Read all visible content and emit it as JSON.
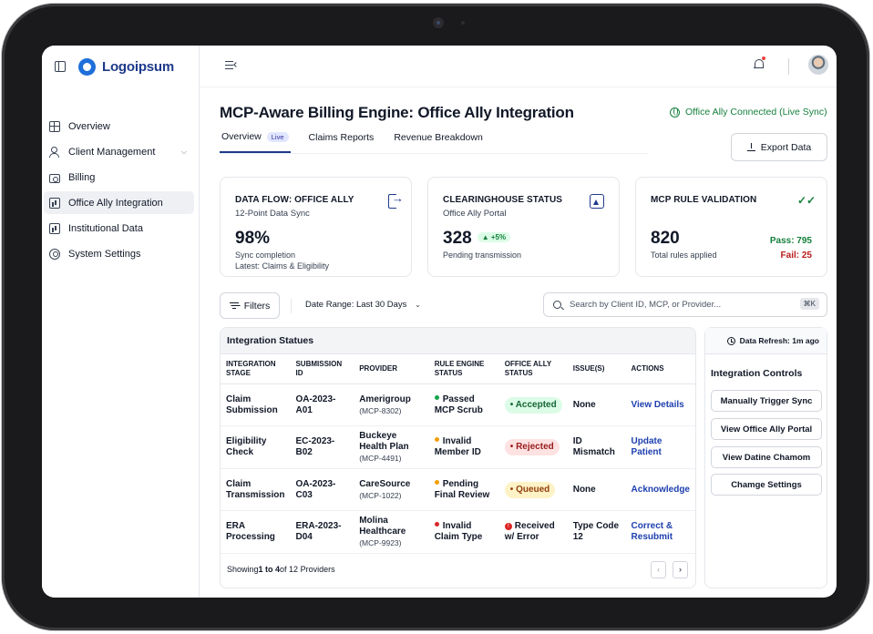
{
  "brand": {
    "name": "Logoipsum",
    "color": "#1e6fd9"
  },
  "sidebar": {
    "items": [
      {
        "label": "Overview",
        "icon": "grid-icon"
      },
      {
        "label": "Client Management",
        "icon": "users-icon",
        "expandable": true
      },
      {
        "label": "Billing",
        "icon": "credit-card-icon"
      },
      {
        "label": "Office Ally Integration",
        "icon": "bar-chart-icon",
        "active": true
      },
      {
        "label": "Institutional Data",
        "icon": "bar-chart-icon"
      },
      {
        "label": "System Settings",
        "icon": "gear-icon"
      }
    ]
  },
  "header": {
    "title": "MCP-Aware Billing Engine: Office Ally Integration",
    "connection_status": "Office Ally Connected (Live Sync)",
    "export_label": "Export Data"
  },
  "tabs": [
    {
      "label": "Overview",
      "badge": "Live",
      "active": true
    },
    {
      "label": "Claims Reports"
    },
    {
      "label": "Revenue Breakdown"
    }
  ],
  "cards": {
    "data_flow": {
      "title": "DATA FLOW: OFFICE ALLY",
      "subtitle": "12-Point Data Sync",
      "value": "98%",
      "note1": "Sync completion",
      "note2": "Latest: Claims & Eligibility"
    },
    "clearinghouse": {
      "title": "CLEARINGHOUSE STATUS",
      "subtitle": "Office Ally Portal",
      "value": "328",
      "change": "+5%",
      "note": "Pending transmission"
    },
    "mcp_rules": {
      "title": "MCP RULE VALIDATION",
      "value": "820",
      "note": "Total rules applied",
      "pass": "Pass: 795",
      "fail": "Fail: 25"
    }
  },
  "filters": {
    "button_label": "Filters",
    "date_range": "Date Range: Last 30 Days",
    "search_placeholder": "Search by Client ID, MCP, or Provider...",
    "shortcut": "⌘K"
  },
  "table": {
    "title": "Integration Statues",
    "columns": [
      "INTEGRATION STAGE",
      "SUBMISSION ID",
      "PROVIDER",
      "RULE ENGINE STATUS",
      "OFFICE ALLY STATUS",
      "ISSUE(S)",
      "ACTIONS"
    ],
    "rows": [
      {
        "stage": "Claim Submission",
        "id": "OA-2023-A01",
        "provider": "Amerigroup",
        "mcp": "(MCP-8302)",
        "rule": "Passed MCP Scrub",
        "rule_color": "#16a34a",
        "oa_status": "Accepted",
        "oa_kind": "accepted",
        "issue": "None",
        "action": "View Details"
      },
      {
        "stage": "Eligibility Check",
        "id": "EC-2023-B02",
        "provider": "Buckeye Health Plan",
        "mcp": "(MCP-4491)",
        "rule": "Invalid Member ID",
        "rule_color": "#f59e0b",
        "oa_status": "Rejected",
        "oa_kind": "rejected",
        "issue": "ID Mismatch",
        "action": "Update Patient"
      },
      {
        "stage": "Claim Transmission",
        "id": "OA-2023-C03",
        "provider": "CareSource",
        "mcp": "(MCP-1022)",
        "rule": "Pending Final Review",
        "rule_color": "#f59e0b",
        "oa_status": "Queued",
        "oa_kind": "queued",
        "issue": "None",
        "action": "Acknowledge"
      },
      {
        "stage": "ERA Processing",
        "id": "ERA-2023-D04",
        "provider": "Molina Healthcare",
        "mcp": "(MCP-9923)",
        "rule": "Invalid Claim Type",
        "rule_color": "#dc2626",
        "oa_status": "Received w/ Error",
        "oa_kind": "error",
        "issue": "Type Code 12",
        "action": "Correct & Resubmit"
      }
    ],
    "footer": {
      "prefix": "Showing ",
      "range": "1 to 4",
      "suffix": " of 12 Providers"
    }
  },
  "controls": {
    "refresh": "Data Refresh: 1m ago",
    "title": "Integration Controls",
    "buttons": [
      "Manually Trigger Sync",
      "View Office Ally Portal",
      "View Datine Chamom",
      "Chamge Settings"
    ]
  }
}
